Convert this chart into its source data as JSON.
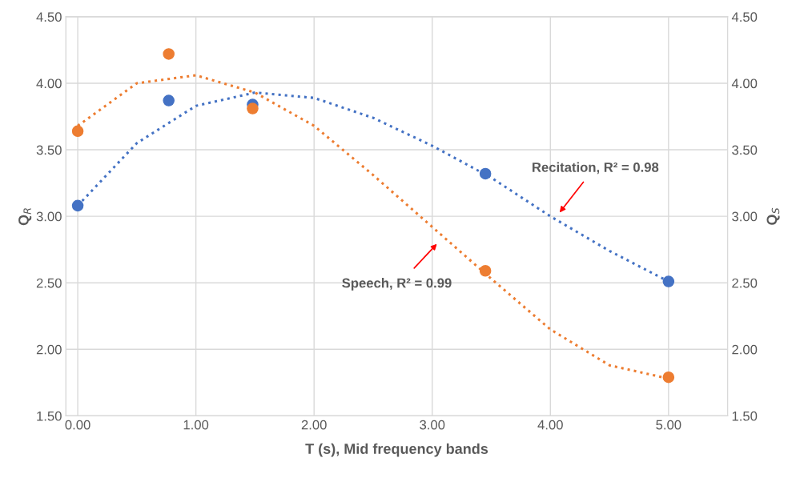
{
  "chart_data": {
    "type": "scatter",
    "xlabel": "T (s), Mid frequency bands",
    "ylabel": "Q$_{R}$",
    "y2label": "Q$_{S}$",
    "xlim": [
      -0.1,
      5.5
    ],
    "ylim": [
      1.5,
      4.5
    ],
    "y2lim": [
      1.5,
      4.5
    ],
    "xticks": [
      {
        "value": 0,
        "label": "0.00"
      },
      {
        "value": 1,
        "label": "1.00"
      },
      {
        "value": 2,
        "label": "2.00"
      },
      {
        "value": 3,
        "label": "3.00"
      },
      {
        "value": 4,
        "label": "4.00"
      },
      {
        "value": 5,
        "label": "5.00"
      }
    ],
    "yticks": [
      {
        "value": 1.5,
        "label": "1.50"
      },
      {
        "value": 2,
        "label": "2.00"
      },
      {
        "value": 2.5,
        "label": "2.50"
      },
      {
        "value": 3,
        "label": "3.00"
      },
      {
        "value": 3.5,
        "label": "3.50"
      },
      {
        "value": 4,
        "label": "4.00"
      },
      {
        "value": 4.5,
        "label": "4.50"
      }
    ],
    "y2ticks": [
      {
        "value": 1.5,
        "label": "1.50"
      },
      {
        "value": 2,
        "label": "2.00"
      },
      {
        "value": 2.5,
        "label": "2.50"
      },
      {
        "value": 3,
        "label": "3.00"
      },
      {
        "value": 3.5,
        "label": "3.50"
      },
      {
        "value": 4,
        "label": "4.00"
      },
      {
        "value": 4.5,
        "label": "4.50"
      }
    ],
    "grid": true,
    "legend": false,
    "series": [
      {
        "type": "line",
        "color": "#4472c4",
        "line_style": "dotted",
        "marker": "none",
        "x": [
          0,
          0.5,
          1,
          1.5,
          2,
          2.5,
          3,
          3.5,
          4,
          4.5,
          5
        ],
        "values": [
          3.08,
          3.55,
          3.83,
          3.93,
          3.89,
          3.74,
          3.53,
          3.29,
          3.0,
          2.74,
          2.51
        ]
      },
      {
        "type": "line",
        "color": "#ed7d31",
        "line_style": "dotted",
        "marker": "none",
        "axis": "y2",
        "x": [
          0,
          0.5,
          1,
          1.5,
          2,
          2.5,
          3,
          3.5,
          4,
          4.5,
          5
        ],
        "values": [
          3.68,
          4.0,
          4.06,
          3.93,
          3.68,
          3.31,
          2.92,
          2.53,
          2.15,
          1.88,
          1.78
        ]
      },
      {
        "color": "#ed7d31",
        "marker": "circle",
        "axis": "y2",
        "x": [
          0,
          0.77,
          1.48,
          3.45,
          5
        ],
        "values": [
          3.64,
          4.22,
          3.81,
          2.59,
          1.79
        ]
      },
      {
        "color": "#4472c4",
        "marker": "circle",
        "x": [
          0,
          0.77,
          1.48,
          3.45,
          5
        ],
        "values": [
          3.08,
          3.87,
          3.84,
          3.32,
          2.51
        ]
      }
    ],
    "annotations": [
      "Recitation, R² = 0.98",
      "Speech, R² = 0.99"
    ]
  }
}
